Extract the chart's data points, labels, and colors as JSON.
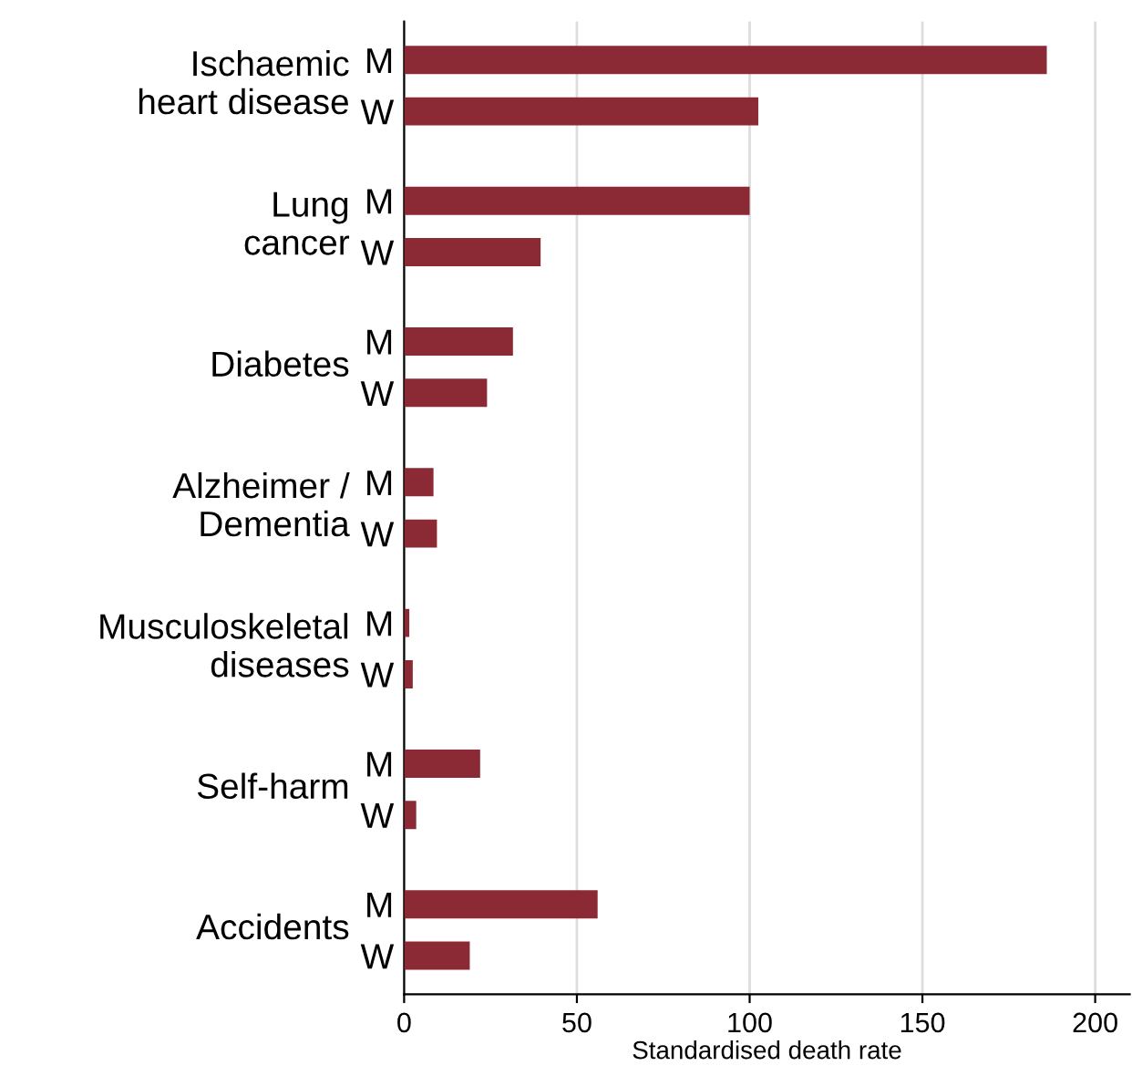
{
  "chart_data": {
    "type": "bar",
    "orientation": "horizontal",
    "categories": [
      "M",
      "W",
      "M",
      "W",
      "M",
      "W",
      "M",
      "W",
      "M",
      "W",
      "M",
      "W",
      "M",
      "W"
    ],
    "values": [
      186,
      102.5,
      100,
      39.5,
      31.5,
      24,
      8.5,
      9.5,
      1.5,
      2.5,
      22,
      3.5,
      56,
      19
    ],
    "color": "#8b2a35",
    "annotations": [
      "Ischaemic\nheart disease",
      "Lung\ncancer",
      "Diabetes",
      "Alzheimer /\nDementia",
      "Musculoskeletal\ndiseases",
      "Self-harm",
      "Accidents"
    ],
    "xlabel": "Standardised death rate",
    "xlim": [
      0,
      210
    ],
    "xticks": [
      0,
      50,
      100,
      150,
      200
    ],
    "grid": "x"
  }
}
